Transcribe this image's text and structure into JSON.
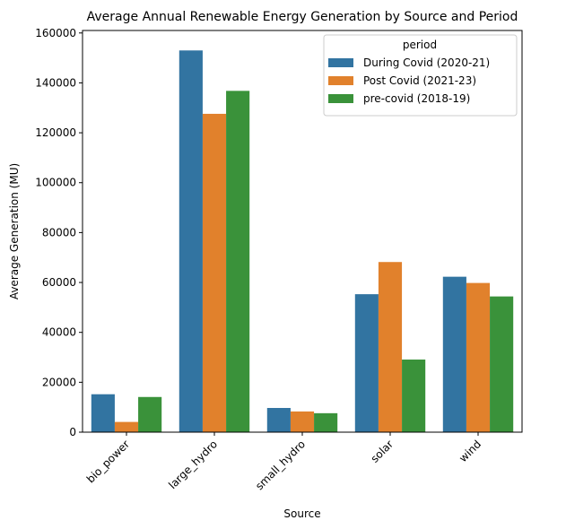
{
  "chart_data": {
    "type": "bar",
    "title": "Average Annual Renewable Energy Generation by Source and Period",
    "xlabel": "Source",
    "ylabel": "Average Generation (MU)",
    "categories": [
      "bio_power",
      "large_hydro",
      "small_hydro",
      "solar",
      "wind"
    ],
    "series": [
      {
        "name": "During Covid (2020-21)",
        "color": "#3274a1",
        "values": [
          15200,
          153000,
          9700,
          55300,
          62300
        ]
      },
      {
        "name": "Post Covid (2021-23)",
        "color": "#e1812c",
        "values": [
          4100,
          127600,
          8300,
          68200,
          59800
        ]
      },
      {
        "name": "pre-covid (2018-19)",
        "color": "#3a923a",
        "values": [
          14100,
          136800,
          7600,
          29100,
          54400
        ]
      }
    ],
    "ylim": [
      0,
      161000
    ],
    "yticks": [
      0,
      20000,
      40000,
      60000,
      80000,
      100000,
      120000,
      140000,
      160000
    ],
    "legend": {
      "title": "period",
      "position": "top-right"
    },
    "grid": false
  }
}
